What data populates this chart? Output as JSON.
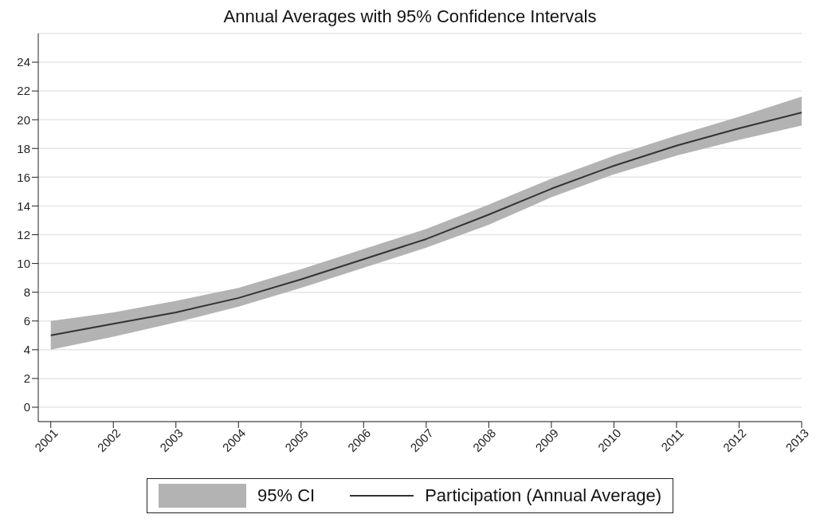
{
  "chart_data": {
    "type": "line",
    "title": "Annual Averages with 95% Confidence Intervals",
    "x": [
      2001,
      2002,
      2003,
      2004,
      2005,
      2006,
      2007,
      2008,
      2009,
      2010,
      2011,
      2012,
      2013
    ],
    "series": [
      {
        "name": "Participation (Annual Average)",
        "color": "#333333",
        "values": [
          5.0,
          5.8,
          6.6,
          7.6,
          8.9,
          10.3,
          11.7,
          13.4,
          15.2,
          16.8,
          18.2,
          19.4,
          20.5
        ],
        "lower": [
          4.0,
          4.9,
          5.9,
          7.0,
          8.3,
          9.7,
          11.1,
          12.7,
          14.6,
          16.2,
          17.5,
          18.6,
          19.6
        ],
        "upper": [
          6.0,
          6.6,
          7.4,
          8.3,
          9.6,
          11.0,
          12.4,
          14.1,
          15.9,
          17.5,
          18.9,
          20.2,
          21.6
        ]
      }
    ],
    "annotations": [
      "95% CI"
    ],
    "xlim": [
      2000.8,
      2013
    ],
    "xticks": [
      2001,
      2002,
      2003,
      2004,
      2005,
      2006,
      2007,
      2008,
      2009,
      2010,
      2011,
      2012,
      2013
    ],
    "ylim": [
      -1,
      26
    ],
    "yticks": [
      0,
      2,
      4,
      6,
      8,
      10,
      12,
      14,
      16,
      18,
      20,
      22,
      24
    ],
    "grid": "y",
    "legend": "bottom",
    "marker": "none",
    "line_style": "solid"
  }
}
